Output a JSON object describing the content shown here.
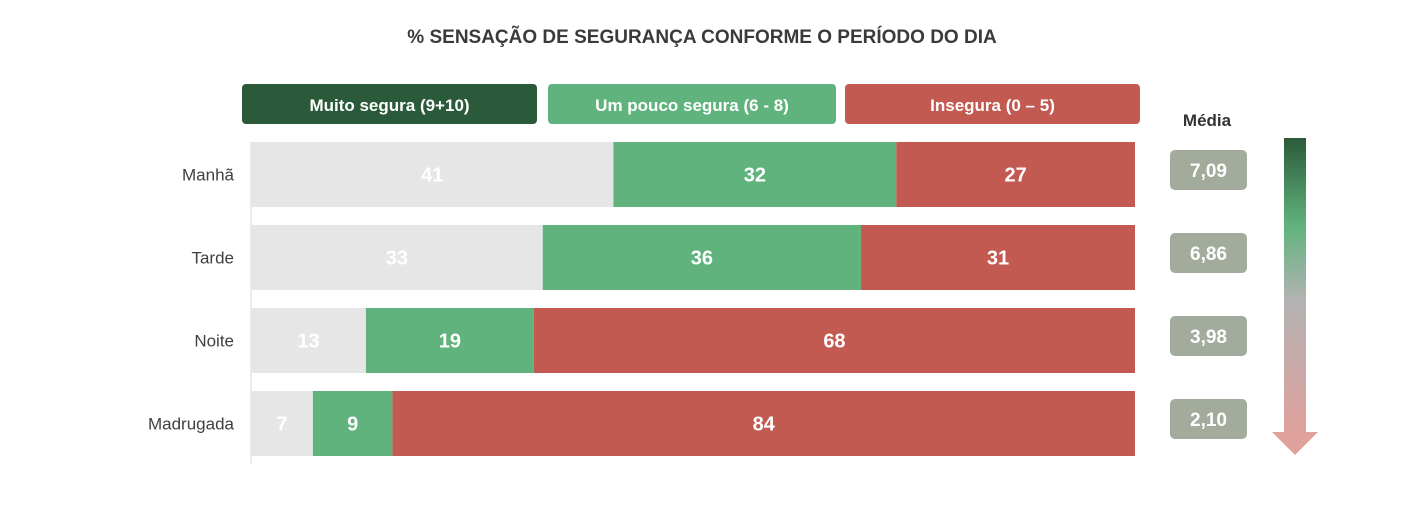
{
  "chart_data": {
    "type": "bar",
    "orientation": "horizontal-stacked-100",
    "title": "% SENSAÇÃO DE SEGURANÇA CONFORME O PERÍODO DO DIA",
    "categories": [
      "Manhã",
      "Tarde",
      "Noite",
      "Madrugada"
    ],
    "series": [
      {
        "name": "Muito segura (9+10)",
        "values": [
          41,
          33,
          13,
          7
        ],
        "color": "#e6e6e6",
        "legend_color": "#2b5a3a"
      },
      {
        "name": "Um pouco segura (6 - 8)",
        "values": [
          32,
          36,
          19,
          9
        ],
        "color": "#61b37d",
        "legend_color": "#61b37d"
      },
      {
        "name": "Insegura (0 – 5)",
        "values": [
          27,
          31,
          68,
          84
        ],
        "color": "#c35a52",
        "legend_color": "#c35a52"
      }
    ],
    "average_header": "Média",
    "averages": [
      "7,09",
      "6,86",
      "3,98",
      "2,10"
    ],
    "average_badge_color": "#a2ab9c",
    "arrow_gradient": [
      "#2b5a3a",
      "#61b37d",
      "#b3b3b3",
      "#e0a19d"
    ],
    "xlim": [
      0,
      100
    ]
  }
}
